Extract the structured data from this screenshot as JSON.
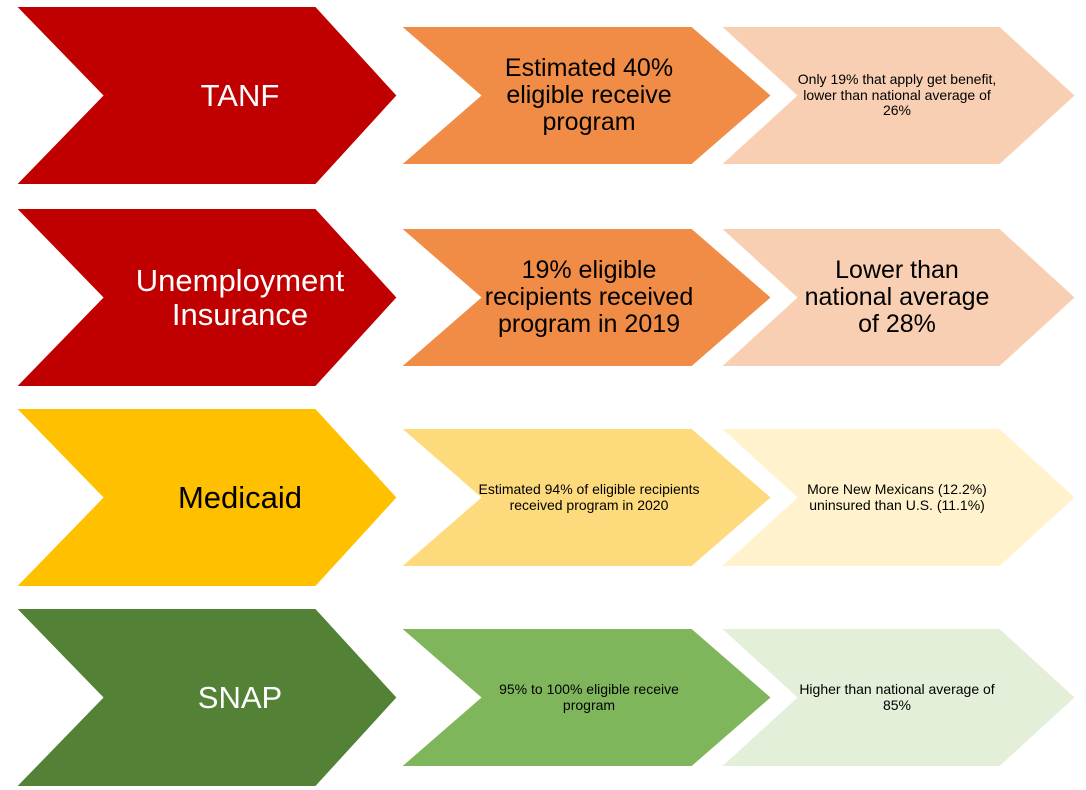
{
  "rows": [
    {
      "label": "TANF",
      "detail": "Estimated 40% eligible receive program",
      "note": "Only 19% that apply get benefit, lower than national average of 26%"
    },
    {
      "label": "Unemployment Insurance",
      "detail": "19% eligible recipients received program in 2019",
      "note": "Lower than national average of 28%"
    },
    {
      "label": "Medicaid",
      "detail": "Estimated 94% of eligible recipients received program in 2020",
      "note": "More New Mexicans (12.2%) uninsured than U.S. (11.1%)"
    },
    {
      "label": "SNAP",
      "detail": "95% to 100% eligible receive program",
      "note": "Higher than national average of 85%"
    }
  ]
}
